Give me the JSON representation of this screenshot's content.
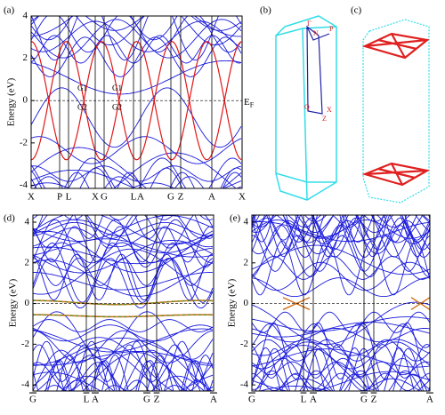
{
  "panels": [
    {
      "label": "(a)",
      "ylabel": "Energy (eV)",
      "ylim": [
        -4.15,
        4
      ],
      "yticks": [
        -4,
        -2,
        0,
        2,
        4
      ],
      "kpoints": [
        "X",
        "P",
        "L",
        "X",
        "G",
        "L",
        "A",
        "G",
        "Z",
        "A",
        "X"
      ],
      "annotations": [
        "G1",
        "G2",
        "G1",
        "G2"
      ],
      "fermi": "E",
      "fermi_sub": "F"
    },
    {
      "label": "(b)",
      "bz_labels": [
        "Γ",
        "N",
        "P",
        "X",
        "Q",
        "Z"
      ]
    },
    {
      "label": "(c)"
    },
    {
      "label": "(d)",
      "ylabel": "Energy (eV)",
      "ylim": [
        -4.3,
        4.35
      ],
      "yticks": [
        -4,
        -2,
        0,
        2,
        4
      ],
      "kpoints": [
        "G",
        "L",
        "A",
        "G",
        "Z",
        "A"
      ]
    },
    {
      "label": "(e)",
      "ylabel": "Energy (eV)",
      "ylim": [
        -4.3,
        4.35
      ],
      "yticks": [
        -4,
        -2,
        0,
        2,
        4
      ],
      "kpoints": [
        "G",
        "L",
        "A",
        "G",
        "Z",
        "A"
      ]
    }
  ]
}
